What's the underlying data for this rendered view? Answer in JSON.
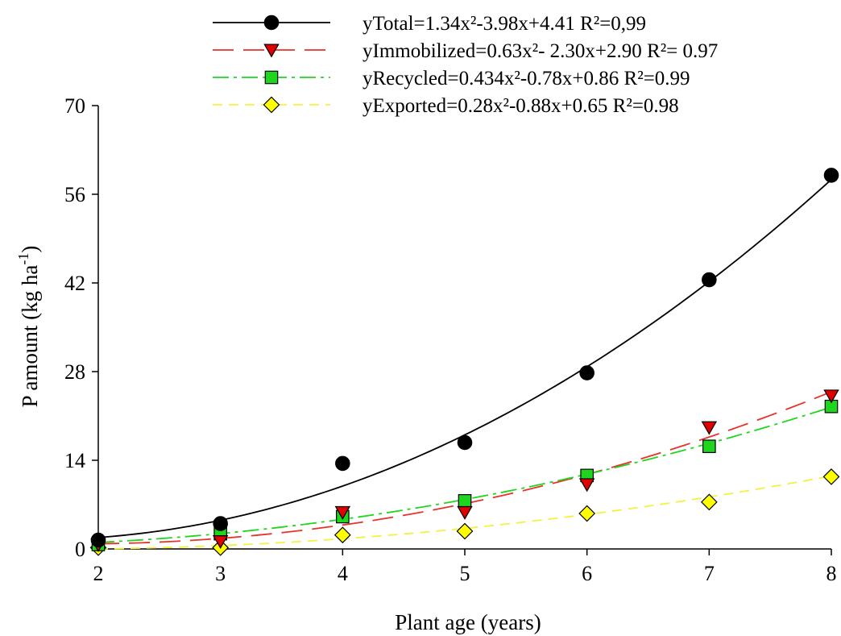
{
  "chart_data": {
    "type": "scatter",
    "title": "",
    "xlabel": "Plant age (years)",
    "ylabel_main": "P amount (kg ha",
    "ylabel_sup": "-1",
    "ylabel_close": ")",
    "xlim": [
      2,
      8
    ],
    "ylim": [
      0,
      70
    ],
    "xticks": [
      2,
      3,
      4,
      5,
      6,
      7,
      8
    ],
    "yticks": [
      0,
      14,
      28,
      42,
      56,
      70
    ],
    "grid": false,
    "legend_position": "top",
    "x": [
      2,
      3,
      4,
      5,
      6,
      7,
      8
    ],
    "series": [
      {
        "name": "yTotal=1.34x²-3.98x+4.41   R²=0,99",
        "marker": "circle",
        "line_style": "solid",
        "color": "#000000",
        "marker_fill": "#000000",
        "values": [
          1.4,
          4.0,
          13.5,
          16.8,
          27.8,
          42.5,
          59.0
        ],
        "fit": [
          1.34,
          -3.98,
          4.41
        ]
      },
      {
        "name": "yImmobilized=0.63x²- 2.30x+2.90   R²= 0.97",
        "marker": "triangle-down",
        "line_style": "long-dash",
        "color": "#e8322d",
        "marker_fill": "#e00000",
        "values": [
          0.7,
          1.2,
          5.8,
          5.8,
          10.2,
          19.2,
          24.2
        ],
        "fit": [
          0.63,
          -2.3,
          2.9
        ]
      },
      {
        "name": "yRecycled=0.434x²-0.78x+0.86   R²=0.99",
        "marker": "square",
        "line_style": "dash-dot",
        "color": "#1fd61f",
        "marker_fill": "#1fd61f",
        "values": [
          0.7,
          2.4,
          5.1,
          7.6,
          11.6,
          16.2,
          22.5
        ],
        "fit": [
          0.434,
          -0.78,
          0.86
        ]
      },
      {
        "name": "yExported=0.28x²-0.88x+0.65   R²=0.98",
        "marker": "diamond",
        "line_style": "dash",
        "color": "#f2f240",
        "marker_fill": "#ffff00",
        "values": [
          0.2,
          0.2,
          2.2,
          2.8,
          5.6,
          7.4,
          11.4
        ],
        "fit": [
          0.28,
          -0.88,
          0.65
        ]
      }
    ]
  }
}
